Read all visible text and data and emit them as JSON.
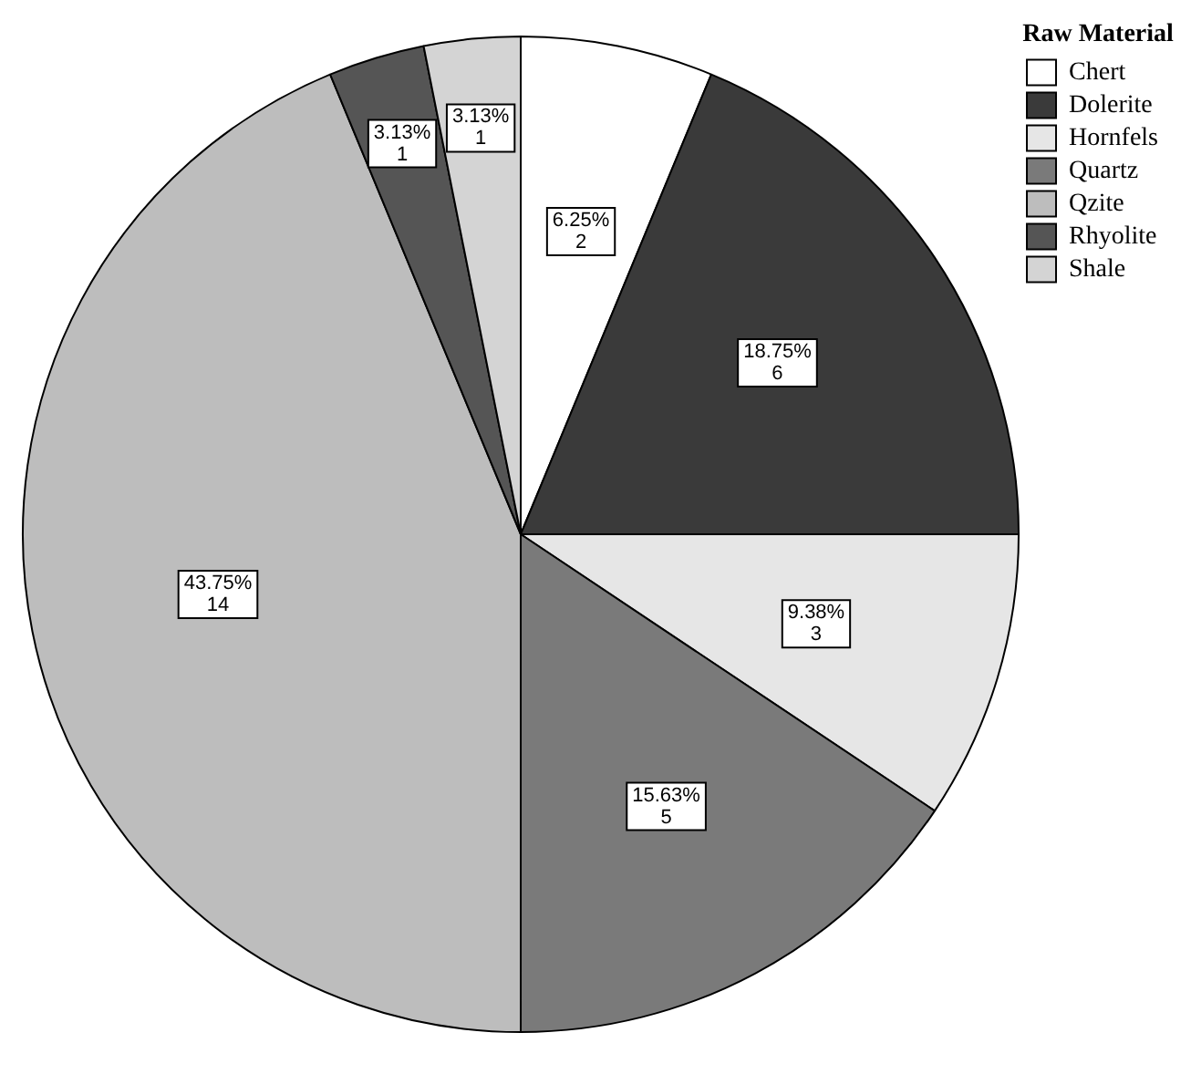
{
  "chart_data": {
    "type": "pie",
    "legend_title": "Raw Material",
    "legend": "top right",
    "categories": [
      "Chert",
      "Dolerite",
      "Hornfels",
      "Quartz",
      "Qzite",
      "Rhyolite",
      "Shale"
    ],
    "values": [
      2,
      6,
      3,
      5,
      14,
      1,
      1
    ],
    "colors": [
      "#ffffff",
      "#3a3a3a",
      "#e6e6e6",
      "#7a7a7a",
      "#bdbdbd",
      "#555555",
      "#d4d4d4"
    ],
    "value_labels": [
      "6.25%\n2",
      "18.75%\n6",
      "9.38%\n3",
      "15.63%\n5",
      "43.75%\n14",
      "3.13%\n1",
      "3.13%\n1"
    ]
  }
}
